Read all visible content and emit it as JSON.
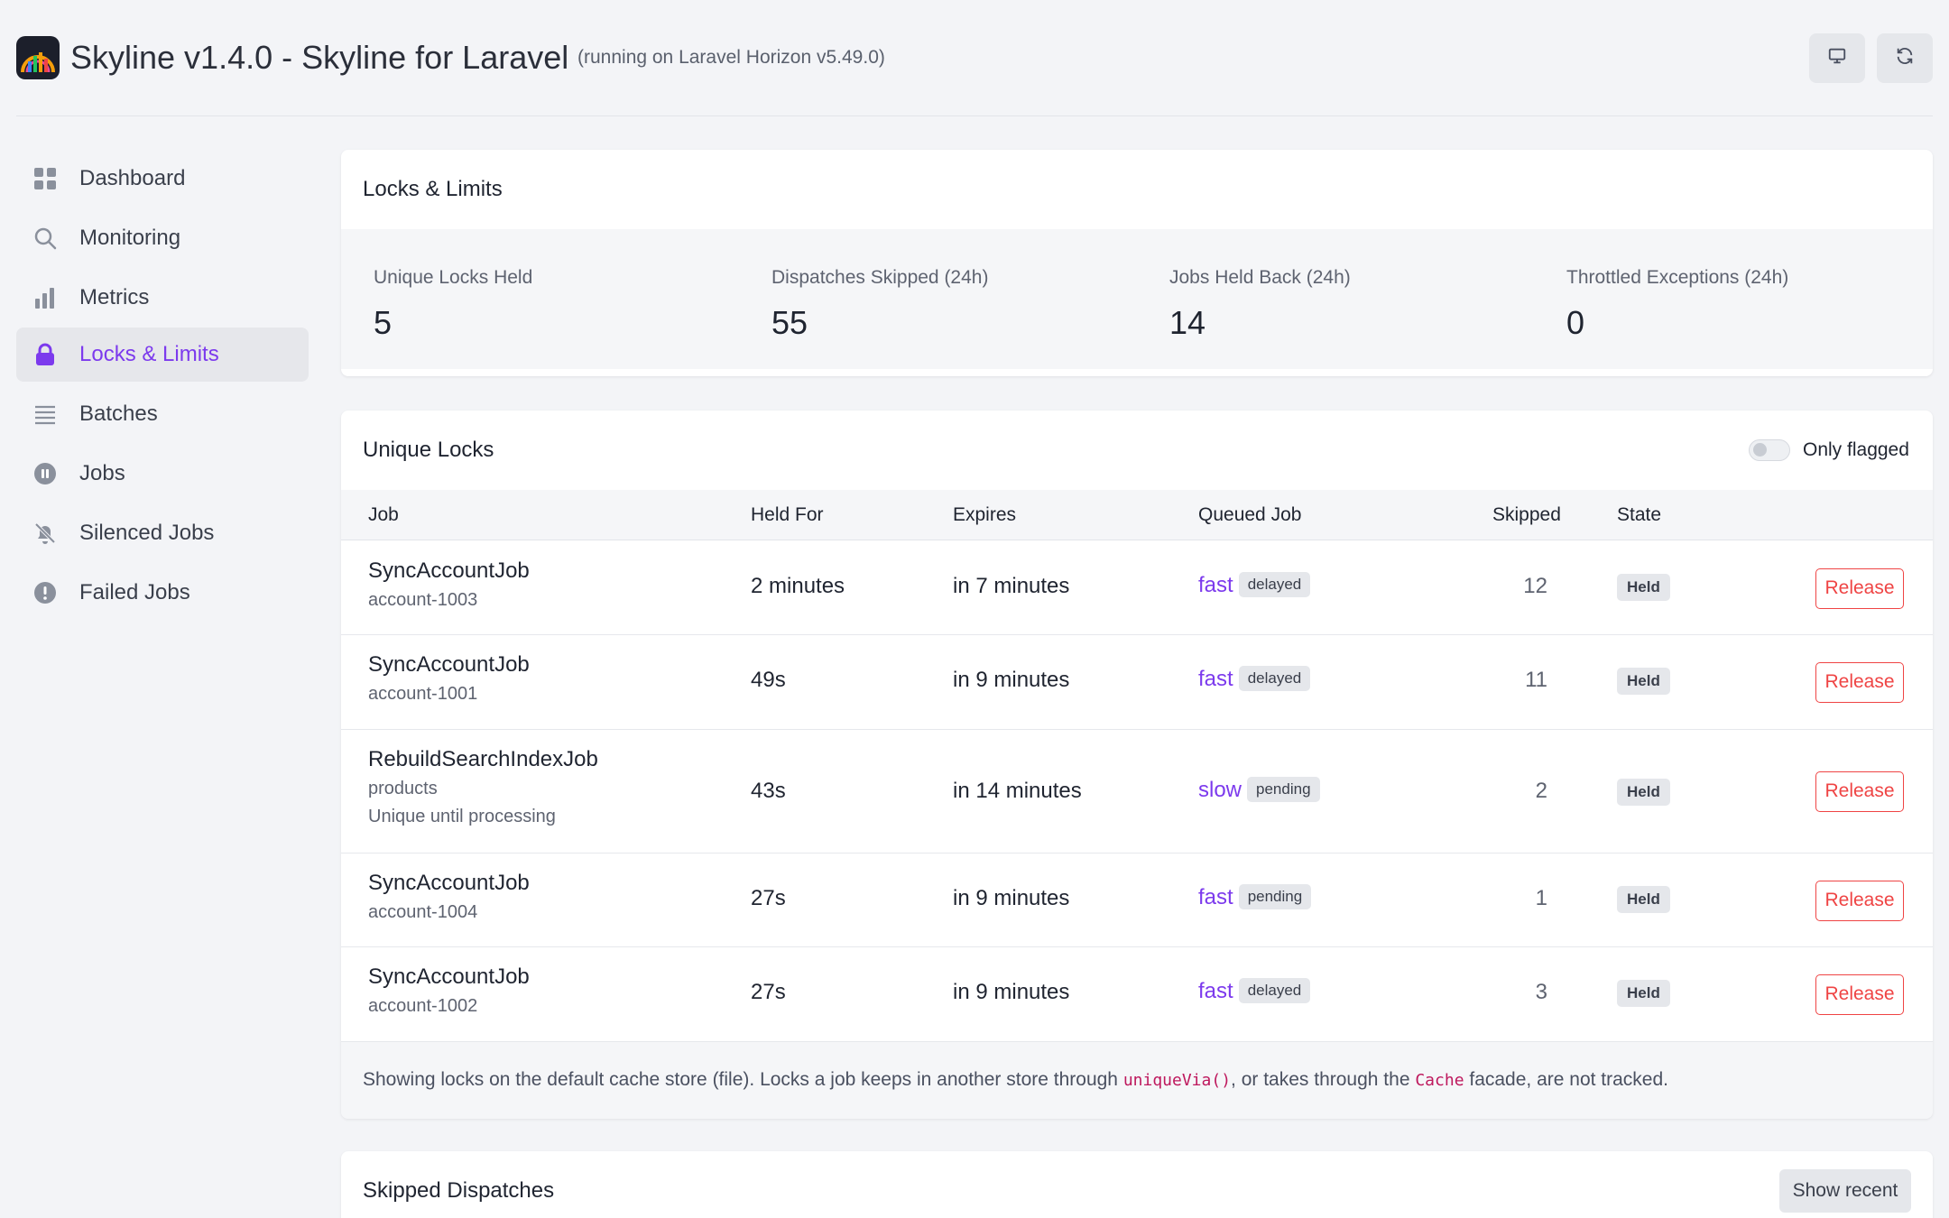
{
  "header": {
    "title": "Skyline v1.4.0 - Skyline for Laravel",
    "subtitle": "(running on Laravel Horizon v5.49.0)",
    "buttons": [
      {
        "icon": "monitor-icon"
      },
      {
        "icon": "refresh-icon"
      }
    ]
  },
  "sidebar": {
    "items": [
      {
        "label": "Dashboard",
        "icon": "grid-icon",
        "active": false
      },
      {
        "label": "Monitoring",
        "icon": "search-icon",
        "active": false
      },
      {
        "label": "Metrics",
        "icon": "bar-chart-icon",
        "active": false
      },
      {
        "label": "Locks & Limits",
        "icon": "lock-icon",
        "active": true
      },
      {
        "label": "Batches",
        "icon": "list-icon",
        "active": false
      },
      {
        "label": "Jobs",
        "icon": "pause-circle-icon",
        "active": false
      },
      {
        "label": "Silenced Jobs",
        "icon": "bell-off-icon",
        "active": false
      },
      {
        "label": "Failed Jobs",
        "icon": "alert-circle-icon",
        "active": false
      }
    ]
  },
  "locks_limits": {
    "title": "Locks & Limits",
    "stats": [
      {
        "label": "Unique Locks Held",
        "value": "5"
      },
      {
        "label": "Dispatches Skipped (24h)",
        "value": "55"
      },
      {
        "label": "Jobs Held Back (24h)",
        "value": "14"
      },
      {
        "label": "Throttled Exceptions (24h)",
        "value": "0"
      }
    ]
  },
  "unique_locks": {
    "title": "Unique Locks",
    "toggle_label": "Only flagged",
    "columns": {
      "job": "Job",
      "held_for": "Held For",
      "expires": "Expires",
      "queued_job": "Queued Job",
      "skipped": "Skipped",
      "state": "State"
    },
    "rows": [
      {
        "job": "SyncAccountJob",
        "key": "account-1003",
        "note": "",
        "held_for": "2 minutes",
        "expires": "in 7 minutes",
        "queue": "fast",
        "queue_status": "delayed",
        "skipped": "12",
        "state": "Held",
        "action": "Release"
      },
      {
        "job": "SyncAccountJob",
        "key": "account-1001",
        "note": "",
        "held_for": "49s",
        "expires": "in 9 minutes",
        "queue": "fast",
        "queue_status": "delayed",
        "skipped": "11",
        "state": "Held",
        "action": "Release"
      },
      {
        "job": "RebuildSearchIndexJob",
        "key": "products",
        "note": "Unique until processing",
        "held_for": "43s",
        "expires": "in 14 minutes",
        "queue": "slow",
        "queue_status": "pending",
        "skipped": "2",
        "state": "Held",
        "action": "Release"
      },
      {
        "job": "SyncAccountJob",
        "key": "account-1004",
        "note": "",
        "held_for": "27s",
        "expires": "in 9 minutes",
        "queue": "fast",
        "queue_status": "pending",
        "skipped": "1",
        "state": "Held",
        "action": "Release"
      },
      {
        "job": "SyncAccountJob",
        "key": "account-1002",
        "note": "",
        "held_for": "27s",
        "expires": "in 9 minutes",
        "queue": "fast",
        "queue_status": "delayed",
        "skipped": "3",
        "state": "Held",
        "action": "Release"
      }
    ],
    "footnote": {
      "part1": "Showing locks on the default cache store (file). Locks a job keeps in another store through ",
      "code1": "uniqueVia()",
      "part2": ", or takes through the ",
      "code2": "Cache",
      "part3": " facade, are not tracked."
    }
  },
  "skipped_dispatches": {
    "title": "Skipped Dispatches",
    "button": "Show recent"
  },
  "colors": {
    "accent": "#7c3aed",
    "danger": "#ef4444",
    "code": "#be185d",
    "background": "#f3f4f7"
  }
}
